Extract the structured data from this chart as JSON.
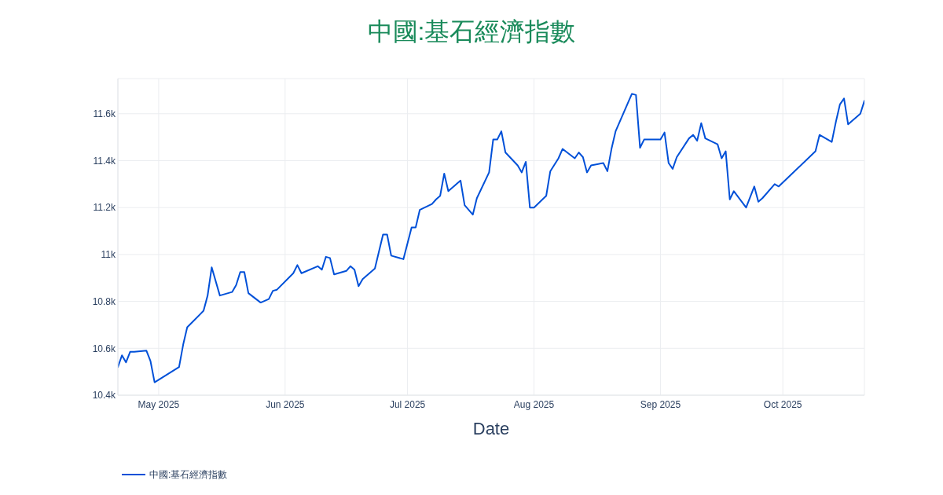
{
  "chart_data": {
    "type": "line",
    "title": "中國:基石經濟指數",
    "xlabel": "Date",
    "x": [
      "2025-04-21",
      "2025-04-22",
      "2025-04-23",
      "2025-04-24",
      "2025-04-25",
      "2025-04-28",
      "2025-04-29",
      "2025-04-30",
      "2025-05-06",
      "2025-05-07",
      "2025-05-08",
      "2025-05-12",
      "2025-05-13",
      "2025-05-14",
      "2025-05-16",
      "2025-05-19",
      "2025-05-20",
      "2025-05-21",
      "2025-05-22",
      "2025-05-23",
      "2025-05-26",
      "2025-05-28",
      "2025-05-29",
      "2025-05-30",
      "2025-06-03",
      "2025-06-04",
      "2025-06-05",
      "2025-06-09",
      "2025-06-10",
      "2025-06-11",
      "2025-06-12",
      "2025-06-13",
      "2025-06-16",
      "2025-06-17",
      "2025-06-18",
      "2025-06-19",
      "2025-06-20",
      "2025-06-23",
      "2025-06-25",
      "2025-06-26",
      "2025-06-27",
      "2025-06-30",
      "2025-07-02",
      "2025-07-03",
      "2025-07-04",
      "2025-07-07",
      "2025-07-08",
      "2025-07-09",
      "2025-07-10",
      "2025-07-11",
      "2025-07-14",
      "2025-07-15",
      "2025-07-17",
      "2025-07-18",
      "2025-07-21",
      "2025-07-22",
      "2025-07-23",
      "2025-07-24",
      "2025-07-25",
      "2025-07-28",
      "2025-07-29",
      "2025-07-30",
      "2025-07-31",
      "2025-08-01",
      "2025-08-04",
      "2025-08-05",
      "2025-08-07",
      "2025-08-08",
      "2025-08-11",
      "2025-08-12",
      "2025-08-13",
      "2025-08-14",
      "2025-08-15",
      "2025-08-18",
      "2025-08-19",
      "2025-08-20",
      "2025-08-21",
      "2025-08-25",
      "2025-08-26",
      "2025-08-27",
      "2025-08-28",
      "2025-08-29",
      "2025-09-01",
      "2025-09-02",
      "2025-09-03",
      "2025-09-04",
      "2025-09-05",
      "2025-09-08",
      "2025-09-09",
      "2025-09-10",
      "2025-09-11",
      "2025-09-12",
      "2025-09-15",
      "2025-09-16",
      "2025-09-17",
      "2025-09-18",
      "2025-09-19",
      "2025-09-22",
      "2025-09-24",
      "2025-09-25",
      "2025-09-26",
      "2025-09-29",
      "2025-09-30",
      "2025-10-09",
      "2025-10-10",
      "2025-10-13",
      "2025-10-14",
      "2025-10-15",
      "2025-10-16",
      "2025-10-17",
      "2025-10-20",
      "2025-10-21"
    ],
    "series": [
      {
        "name": "中國:基石經濟指數",
        "color": "#0050d8",
        "values": [
          10520,
          10570,
          10540,
          10585,
          10585,
          10590,
          10545,
          10455,
          10520,
          10615,
          10690,
          10760,
          10825,
          10945,
          10825,
          10840,
          10870,
          10925,
          10925,
          10835,
          10795,
          10810,
          10845,
          10850,
          10920,
          10955,
          10920,
          10950,
          10935,
          10990,
          10985,
          10915,
          10930,
          10950,
          10935,
          10865,
          10895,
          10940,
          11085,
          11085,
          10995,
          10980,
          11115,
          11115,
          11190,
          11215,
          11235,
          11250,
          11345,
          11270,
          11315,
          11210,
          11170,
          11240,
          11350,
          11490,
          11490,
          11525,
          11435,
          11380,
          11350,
          11395,
          11200,
          11200,
          11250,
          11355,
          11410,
          11450,
          11410,
          11435,
          11415,
          11350,
          11380,
          11390,
          11355,
          11450,
          11525,
          11685,
          11680,
          11455,
          11490,
          11490,
          11490,
          11520,
          11390,
          11365,
          11415,
          11495,
          11510,
          11485,
          11560,
          11495,
          11470,
          11410,
          11440,
          11235,
          11270,
          11200,
          11290,
          11225,
          11240,
          11300,
          11290,
          11440,
          11510,
          11480,
          11565,
          11640,
          11665,
          11555,
          11600,
          11655
        ]
      }
    ],
    "xlim": [
      "2025-04-21",
      "2025-10-21"
    ],
    "xticks": [
      {
        "value": "2025-05-01",
        "label": "May 2025"
      },
      {
        "value": "2025-06-01",
        "label": "Jun 2025"
      },
      {
        "value": "2025-07-01",
        "label": "Jul 2025"
      },
      {
        "value": "2025-08-01",
        "label": "Aug 2025"
      },
      {
        "value": "2025-09-01",
        "label": "Sep 2025"
      },
      {
        "value": "2025-10-01",
        "label": "Oct 2025"
      }
    ],
    "ylim": [
      10400,
      11750
    ],
    "yticks": [
      {
        "value": 10400,
        "label": "10.4k"
      },
      {
        "value": 10600,
        "label": "10.6k"
      },
      {
        "value": 10800,
        "label": "10.8k"
      },
      {
        "value": 11000,
        "label": "11k"
      },
      {
        "value": 11200,
        "label": "11.2k"
      },
      {
        "value": 11400,
        "label": "11.4k"
      },
      {
        "value": 11600,
        "label": "11.6k"
      }
    ],
    "grid": true,
    "legend": "bottom left",
    "line_style": "solid"
  }
}
